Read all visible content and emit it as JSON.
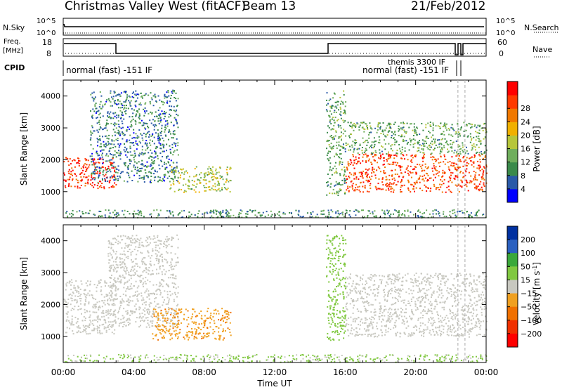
{
  "header": {
    "title": "Christmas Valley West (fitACF)",
    "beam": "Beam 13",
    "date": "21/Feb/2012"
  },
  "top_panels": {
    "nsky_label": "N.Sky",
    "nsky_ticks": [
      "10^5",
      "10^0"
    ],
    "nsearch_label": "N.Search",
    "nsearch_ticks": [
      "10^5",
      "10^0"
    ],
    "freq_label": [
      "Freq.",
      "[MHz]"
    ],
    "freq_ticks": [
      "18",
      "8"
    ],
    "nave_label": "Nave",
    "nave_ticks": [
      "60",
      "0"
    ],
    "cpid_label": "CPID",
    "cpid_texts": [
      "normal (fast) -151 IF",
      "themis 3300 IF",
      "normal (fast) -151 IF"
    ]
  },
  "colors": {
    "power_scale": [
      "#0000ff",
      "#2a5aa8",
      "#3a8a4a",
      "#6fae5c",
      "#b6c63a",
      "#f0b000",
      "#f07800",
      "#ff3a00",
      "#ff0000"
    ],
    "velocity_scale": [
      "#0030a0",
      "#2a60c0",
      "#3aa83a",
      "#80c840",
      "#c8c8c0",
      "#f0a020",
      "#f07000",
      "#f03000",
      "#ff0000"
    ]
  },
  "chart_data": [
    {
      "type": "heatmap",
      "title": "",
      "xlabel": "",
      "ylabel": "Slant Range [km]",
      "x_ticks": [
        "00:00",
        "04:00",
        "08:00",
        "12:00",
        "16:00",
        "20:00",
        "00:00"
      ],
      "xlim_hours": [
        0,
        24
      ],
      "ylim_km": [
        180,
        4500
      ],
      "y_ticks": [
        1000,
        2000,
        3000,
        4000
      ],
      "colorbar": {
        "label": "Power [dB]",
        "ticks": [
          4,
          8,
          12,
          16,
          20,
          24,
          28
        ],
        "range": [
          0,
          30
        ]
      },
      "features": [
        {
          "name": "main-band",
          "hours": [
            0,
            3.0
          ],
          "range_km": [
            1100,
            2100
          ],
          "level_db": 28
        },
        {
          "name": "plume-am",
          "hours": [
            1.5,
            6.5
          ],
          "range_km": [
            1300,
            4200
          ],
          "level_db": 6
        },
        {
          "name": "afternoon-echo",
          "hours": [
            6.0,
            9.5
          ],
          "range_km": [
            1000,
            1800
          ],
          "level_db": 14
        },
        {
          "name": "ground-scatter-low",
          "hours": [
            0,
            24
          ],
          "range_km": [
            200,
            450
          ],
          "level_db": 8
        },
        {
          "name": "spike-15",
          "hours": [
            14.9,
            16.0
          ],
          "range_km": [
            900,
            4200
          ],
          "level_db": 10
        },
        {
          "name": "evening-band",
          "hours": [
            16.0,
            24
          ],
          "range_km": [
            1000,
            2200
          ],
          "level_db": 26
        },
        {
          "name": "evening-upper",
          "hours": [
            16.0,
            24
          ],
          "range_km": [
            2200,
            3200
          ],
          "level_db": 10
        }
      ]
    },
    {
      "type": "heatmap",
      "title": "",
      "xlabel": "Time UT",
      "ylabel": "Slant Range [km]",
      "x_ticks": [
        "00:00",
        "04:00",
        "08:00",
        "12:00",
        "16:00",
        "20:00",
        "00:00"
      ],
      "xlim_hours": [
        0,
        24
      ],
      "ylim_km": [
        180,
        4500
      ],
      "y_ticks": [
        1000,
        2000,
        3000,
        4000
      ],
      "colorbar": {
        "label": "Velocity [m s^-1]",
        "ticks": [
          200,
          100,
          50,
          15,
          -15,
          -50,
          -100,
          -200
        ],
        "range": [
          -250,
          250
        ]
      },
      "features": [
        {
          "name": "main-band-grey",
          "hours": [
            0,
            3.0
          ],
          "range_km": [
            1100,
            2800
          ],
          "velocity": 0
        },
        {
          "name": "plume-am",
          "hours": [
            2.5,
            6.5
          ],
          "range_km": [
            1300,
            4200
          ],
          "velocity": 0
        },
        {
          "name": "afternoon-orange",
          "hours": [
            5.0,
            9.5
          ],
          "range_km": [
            900,
            1900
          ],
          "velocity": -80
        },
        {
          "name": "ground-scatter-low",
          "hours": [
            0,
            24
          ],
          "range_km": [
            200,
            450
          ],
          "velocity": 40
        },
        {
          "name": "spike-15-green",
          "hours": [
            14.9,
            16.0
          ],
          "range_km": [
            900,
            4200
          ],
          "velocity": 60
        },
        {
          "name": "evening-grey",
          "hours": [
            16.0,
            24
          ],
          "range_km": [
            1000,
            3000
          ],
          "velocity": 0
        }
      ]
    }
  ]
}
